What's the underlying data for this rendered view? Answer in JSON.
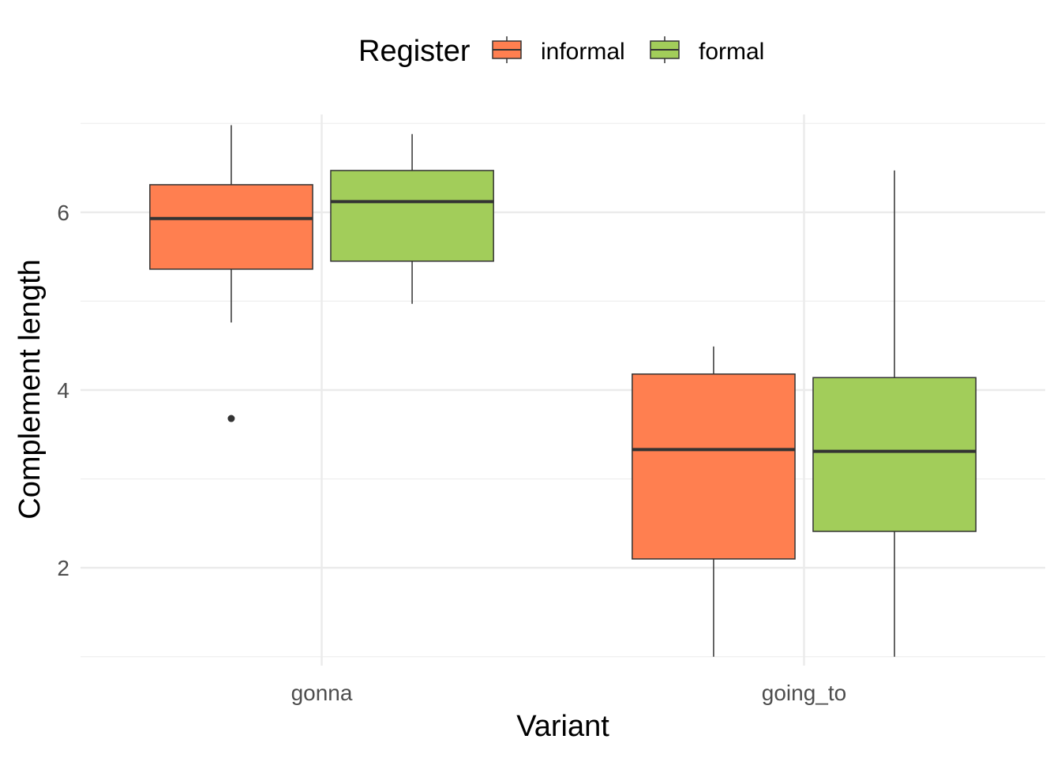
{
  "chart_data": {
    "type": "boxplot",
    "xlabel": "Variant",
    "ylabel": "Complement length",
    "categories": [
      "gonna",
      "going_to"
    ],
    "ylim": [
      0.9,
      7.1
    ],
    "yticks": [
      2,
      4,
      6
    ],
    "grid": true,
    "legend": {
      "title": "Register",
      "position": "top"
    },
    "series": [
      {
        "name": "informal",
        "color": "#FF7F50",
        "boxes": [
          {
            "category": "gonna",
            "min": 4.76,
            "q1": 5.36,
            "median": 5.93,
            "q3": 6.31,
            "max": 6.98,
            "outliers": [
              3.68
            ]
          },
          {
            "category": "going_to",
            "min": 1.0,
            "q1": 2.1,
            "median": 3.33,
            "q3": 4.18,
            "max": 4.49,
            "outliers": []
          }
        ]
      },
      {
        "name": "formal",
        "color": "#A2CD5A",
        "boxes": [
          {
            "category": "gonna",
            "min": 4.97,
            "q1": 5.45,
            "median": 6.12,
            "q3": 6.47,
            "max": 6.88,
            "outliers": []
          },
          {
            "category": "going_to",
            "min": 1.0,
            "q1": 2.41,
            "median": 3.31,
            "q3": 4.14,
            "max": 6.47,
            "outliers": []
          }
        ]
      }
    ]
  }
}
